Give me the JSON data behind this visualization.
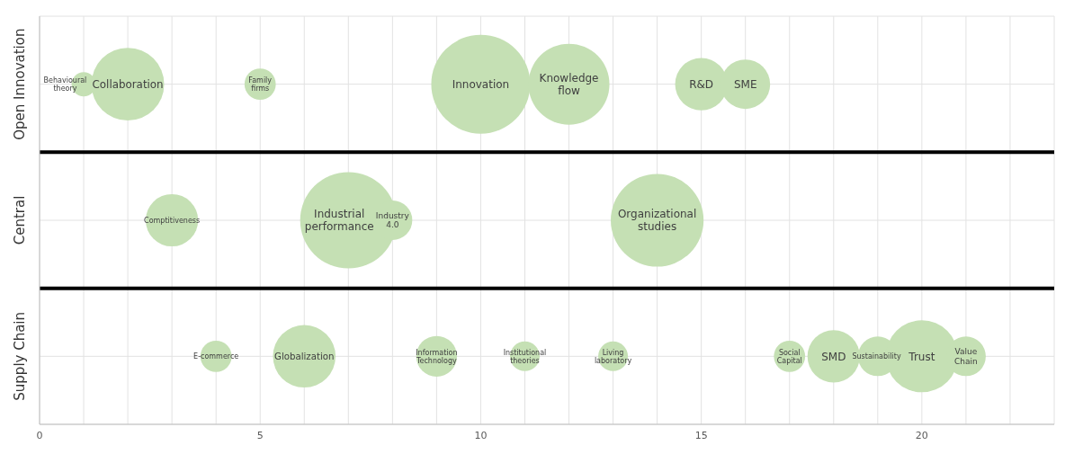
{
  "chart_data": {
    "type": "bubble",
    "orientation": "horizontal",
    "categories": [
      "Open Innovation",
      "Central",
      "Supply Chain"
    ],
    "series": [
      {
        "color": "#c5e0b4",
        "values": [
          1,
          3,
          4
        ],
        "sizes": [
          0.06,
          0.28,
          0.1
        ]
      },
      {
        "color": "#c5e0b4",
        "values": [
          2,
          7,
          6
        ],
        "sizes": [
          0.54,
          0.95,
          0.4
        ]
      },
      {
        "color": "#c5e0b4",
        "values": [
          5,
          8,
          9
        ],
        "sizes": [
          0.1,
          0.16,
          0.17
        ]
      },
      {
        "color": "#c5e0b4",
        "values": [
          10,
          14,
          11
        ],
        "sizes": [
          1,
          0.88,
          0.09
        ]
      },
      {
        "color": "#c5e0b4",
        "values": [
          12,
          null,
          13
        ],
        "sizes": [
          0.67,
          null,
          0.09
        ]
      },
      {
        "color": "#c5e0b4",
        "values": [
          15,
          null,
          17
        ],
        "sizes": [
          0.28,
          null,
          0.1
        ]
      },
      {
        "color": "#c5e0b4",
        "values": [
          16,
          null,
          18
        ],
        "sizes": [
          0.25,
          null,
          0.28
        ]
      },
      {
        "color": "#c5e0b4",
        "values": [
          null,
          null,
          19
        ],
        "sizes": [
          null,
          null,
          0.16
        ]
      },
      {
        "color": "#c5e0b4",
        "values": [
          null,
          null,
          20
        ],
        "sizes": [
          null,
          null,
          0.53
        ]
      },
      {
        "color": "#c5e0b4",
        "values": [
          null,
          null,
          21
        ],
        "sizes": [
          null,
          null,
          0.16
        ]
      }
    ],
    "xlim": [
      0,
      23
    ],
    "xticks": [
      0,
      {
        "value": 1,
        "label": null
      },
      {
        "value": 2,
        "label": null
      },
      {
        "value": 3,
        "label": null
      },
      {
        "value": 4,
        "label": null
      },
      5,
      {
        "value": 6,
        "label": null
      },
      {
        "value": 7,
        "label": null
      },
      {
        "value": 8,
        "label": null
      },
      {
        "value": 9,
        "label": null
      },
      10,
      {
        "value": 11,
        "label": null
      },
      {
        "value": 12,
        "label": null
      },
      {
        "value": 13,
        "label": null
      },
      {
        "value": 14,
        "label": null
      },
      15,
      {
        "value": 16,
        "label": null
      },
      {
        "value": 17,
        "label": null
      },
      {
        "value": 18,
        "label": null
      },
      {
        "value": 19,
        "label": null
      },
      20,
      {
        "value": 21,
        "label": null
      },
      {
        "value": 22,
        "label": null
      }
    ],
    "grid": true,
    "annotations": [
      {
        "text": "Behavioural theory",
        "x": 1,
        "y": "Open Innovation"
      },
      {
        "text": "Collaboration",
        "x": 2,
        "y": "Open Innovation"
      },
      {
        "text": "Family firms",
        "x": 5,
        "y": "Open Innovation"
      },
      {
        "text": "Innovation",
        "x": 10,
        "y": "Open Innovation"
      },
      {
        "text": "Knowledge flow",
        "x": 12,
        "y": "Open Innovation"
      },
      {
        "text": "R&D",
        "x": 15,
        "y": "Open Innovation"
      },
      {
        "text": "SME",
        "x": 16,
        "y": "Open Innovation"
      },
      {
        "text": "Comptitiveness",
        "x": 3,
        "y": "Central"
      },
      {
        "text": "Industrial performance",
        "x": 7,
        "y": "Central"
      },
      {
        "text": "Industry 4.0",
        "x": 8,
        "y": "Central"
      },
      {
        "text": "Organizational studies",
        "x": 14,
        "y": "Central"
      },
      {
        "text": "E-commerce",
        "x": 4,
        "y": "Supply Chain"
      },
      {
        "text": "Globalization",
        "x": 6,
        "y": "Supply Chain"
      },
      {
        "text": "Information Technology",
        "x": 9,
        "y": "Supply Chain"
      },
      {
        "text": "Institutional theories",
        "x": 11,
        "y": "Supply Chain"
      },
      {
        "text": "Living laboratory",
        "x": 13,
        "y": "Supply Chain"
      },
      {
        "text": "Social Capital",
        "x": 17,
        "y": "Supply Chain"
      },
      {
        "text": "SMD",
        "x": 18,
        "y": "Supply Chain"
      },
      {
        "text": "Sustainability",
        "x": 19,
        "y": "Supply Chain"
      },
      {
        "text": "Trust",
        "x": 20,
        "y": "Supply Chain"
      },
      {
        "text": "Value Chain",
        "x": 21,
        "y": "Supply Chain"
      }
    ]
  }
}
